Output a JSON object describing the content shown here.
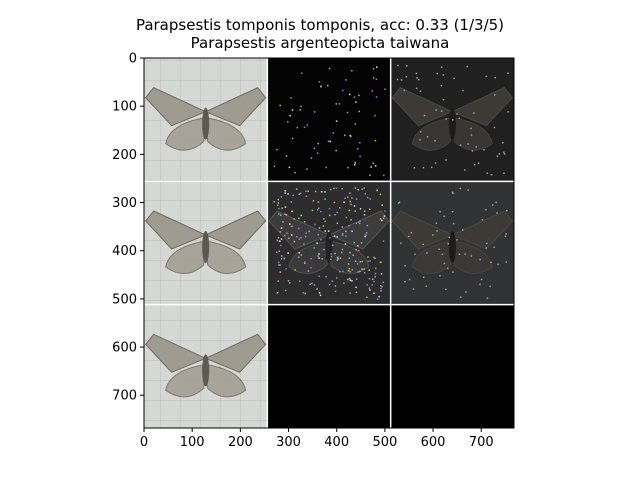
{
  "chart_data": {
    "type": "image-grid",
    "title_line1": "Parapsestis tomponis tomponis, acc: 0.33 (1/3/5)",
    "title_line2": "Parapsestis argenteopicta taiwana",
    "xlim": [
      0,
      768
    ],
    "ylim": [
      768,
      0
    ],
    "x_ticks": [
      0,
      100,
      200,
      300,
      400,
      500,
      600,
      700
    ],
    "y_ticks": [
      0,
      100,
      200,
      300,
      400,
      500,
      600,
      700
    ],
    "grid": {
      "rows": 3,
      "cols": 3,
      "cell_size": 256
    },
    "cells": [
      {
        "row": 0,
        "col": 0,
        "content": "moth-photo",
        "tone": "light"
      },
      {
        "row": 0,
        "col": 1,
        "content": "attribution-map",
        "tone": "sparse"
      },
      {
        "row": 0,
        "col": 2,
        "content": "dimmed-overlay",
        "tone": "dark"
      },
      {
        "row": 1,
        "col": 0,
        "content": "moth-photo",
        "tone": "light"
      },
      {
        "row": 1,
        "col": 1,
        "content": "attribution-map",
        "tone": "dense"
      },
      {
        "row": 1,
        "col": 2,
        "content": "dimmed-overlay",
        "tone": "dark"
      },
      {
        "row": 2,
        "col": 0,
        "content": "moth-photo",
        "tone": "light"
      },
      {
        "row": 2,
        "col": 1,
        "content": "empty",
        "tone": "black"
      },
      {
        "row": 2,
        "col": 2,
        "content": "empty",
        "tone": "black"
      }
    ]
  }
}
